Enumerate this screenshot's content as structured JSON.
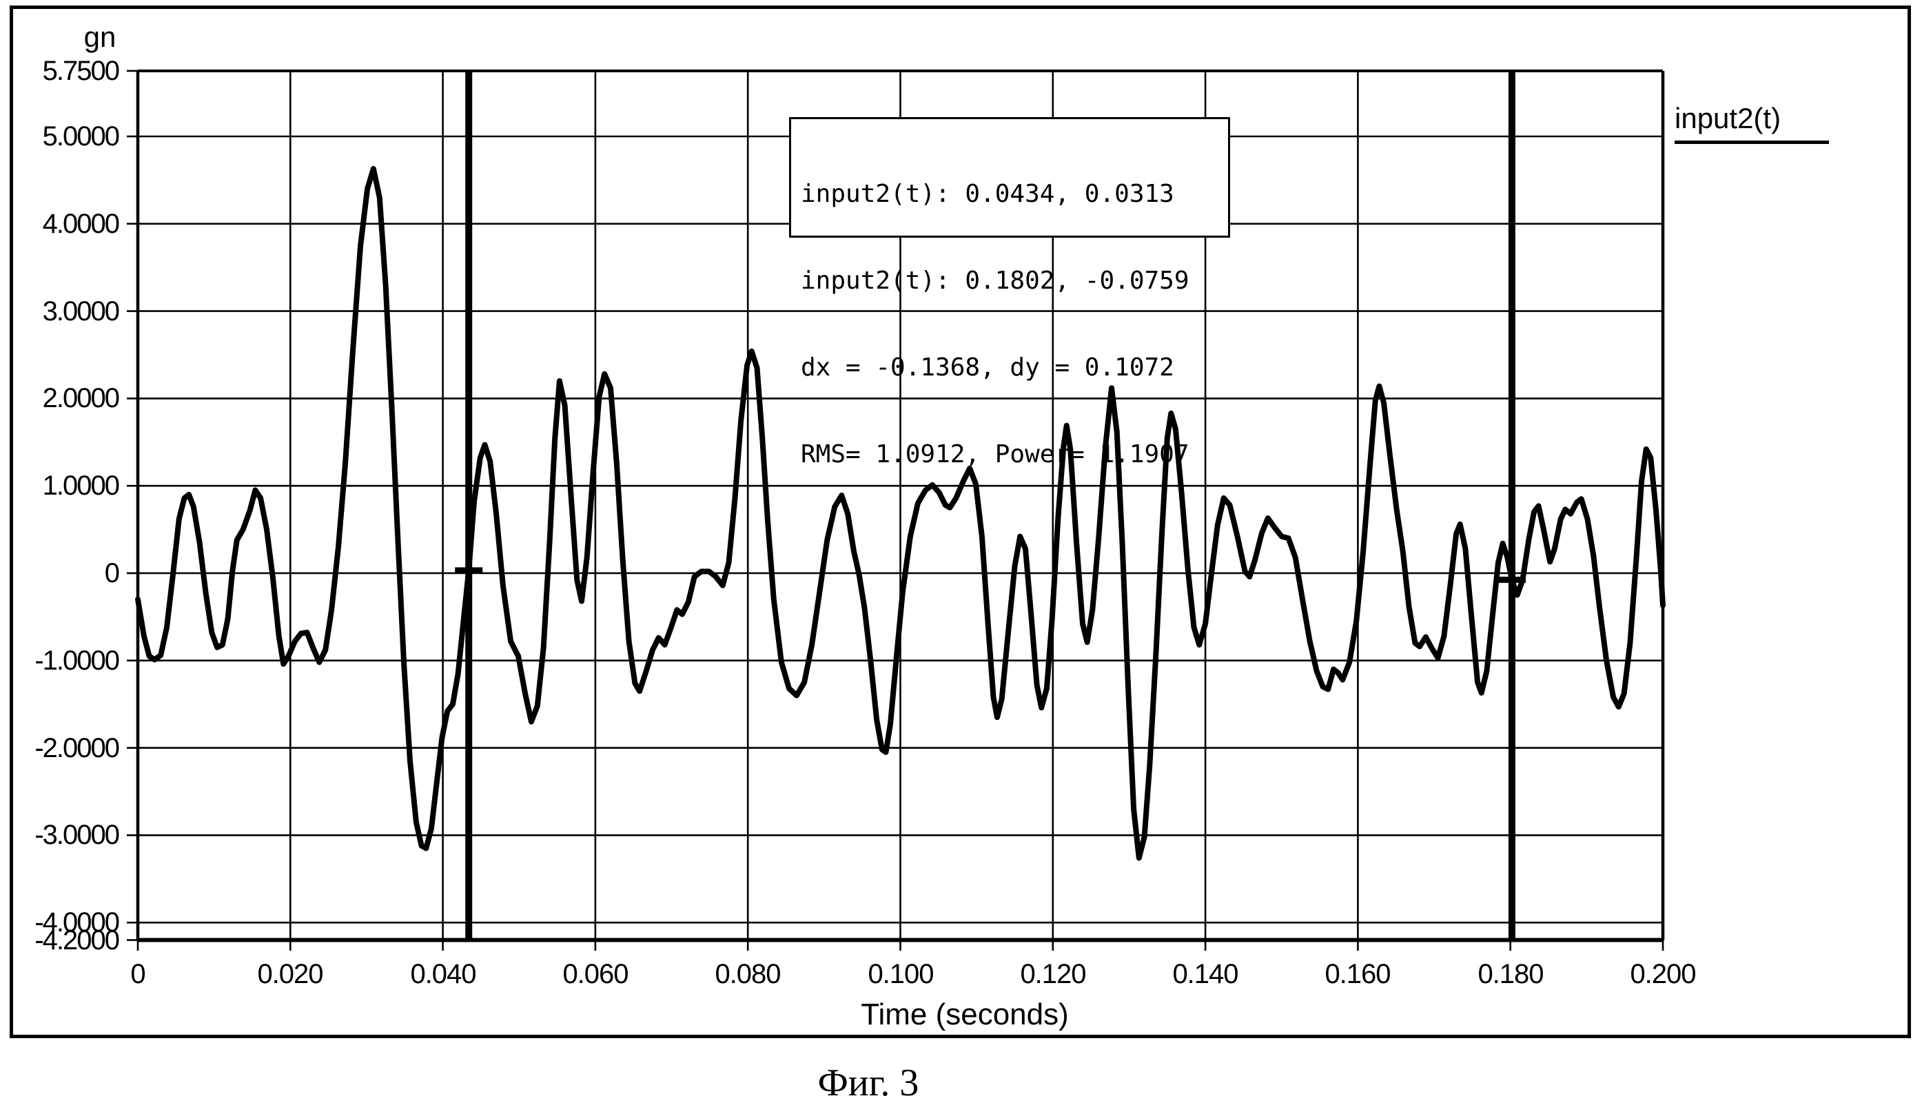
{
  "colors": {
    "ink": "#000000",
    "background": "#ffffff"
  },
  "caption": "Фиг. 3",
  "legend": {
    "label": "input2(t)"
  },
  "annotation_box": {
    "lines": [
      "input2(t): 0.0434, 0.0313",
      "input2(t): 0.1802, -0.0759",
      "dx = -0.1368, dy = 0.1072",
      "RMS= 1.0912, Power= 1.1907"
    ]
  },
  "cursors": [
    {
      "t": 0.0434,
      "value": 0.0313
    },
    {
      "t": 0.1802,
      "value": -0.0759
    }
  ],
  "chart_data": {
    "type": "line",
    "title": "",
    "ylabel": "gn",
    "xlabel": "Time (seconds)",
    "xlim": [
      0,
      0.2
    ],
    "ylim": [
      -4.2,
      5.75
    ],
    "grid": true,
    "legend_position": "top-right",
    "y_ticks": [
      {
        "v": 5.75,
        "label": "5.7500"
      },
      {
        "v": 5.0,
        "label": "5.0000"
      },
      {
        "v": 4.0,
        "label": "4.0000"
      },
      {
        "v": 3.0,
        "label": "3.0000"
      },
      {
        "v": 2.0,
        "label": "2.0000"
      },
      {
        "v": 1.0,
        "label": "1.0000"
      },
      {
        "v": 0.0,
        "label": "0"
      },
      {
        "v": -1.0,
        "label": "-1.0000"
      },
      {
        "v": -2.0,
        "label": "-2.0000"
      },
      {
        "v": -3.0,
        "label": "-3.0000"
      },
      {
        "v": -4.0,
        "label": "-4.0000"
      },
      {
        "v": -4.2,
        "label": "-4.2000"
      }
    ],
    "x_ticks": [
      {
        "v": 0.0,
        "label": "0"
      },
      {
        "v": 0.02,
        "label": "0.020"
      },
      {
        "v": 0.04,
        "label": "0.040"
      },
      {
        "v": 0.06,
        "label": "0.060"
      },
      {
        "v": 0.08,
        "label": "0.080"
      },
      {
        "v": 0.1,
        "label": "0.100"
      },
      {
        "v": 0.12,
        "label": "0.120"
      },
      {
        "v": 0.14,
        "label": "0.140"
      },
      {
        "v": 0.16,
        "label": "0.160"
      },
      {
        "v": 0.18,
        "label": "0.180"
      },
      {
        "v": 0.2,
        "label": "0.200"
      }
    ],
    "series": [
      {
        "name": "input2(t)",
        "points": [
          [
            0.0,
            -0.3
          ],
          [
            0.0008,
            -0.72
          ],
          [
            0.0015,
            -0.95
          ],
          [
            0.0022,
            -0.99
          ],
          [
            0.003,
            -0.94
          ],
          [
            0.0038,
            -0.62
          ],
          [
            0.0046,
            -0.02
          ],
          [
            0.0054,
            0.62
          ],
          [
            0.0061,
            0.86
          ],
          [
            0.0067,
            0.9
          ],
          [
            0.0073,
            0.76
          ],
          [
            0.0081,
            0.35
          ],
          [
            0.0089,
            -0.22
          ],
          [
            0.0097,
            -0.68
          ],
          [
            0.0104,
            -0.85
          ],
          [
            0.0111,
            -0.82
          ],
          [
            0.0118,
            -0.52
          ],
          [
            0.0124,
            0.02
          ],
          [
            0.013,
            0.38
          ],
          [
            0.0138,
            0.5
          ],
          [
            0.0147,
            0.72
          ],
          [
            0.0154,
            0.95
          ],
          [
            0.0161,
            0.86
          ],
          [
            0.0169,
            0.5
          ],
          [
            0.0177,
            -0.05
          ],
          [
            0.0185,
            -0.72
          ],
          [
            0.0191,
            -1.04
          ],
          [
            0.0198,
            -0.94
          ],
          [
            0.0206,
            -0.78
          ],
          [
            0.0214,
            -0.69
          ],
          [
            0.0222,
            -0.68
          ],
          [
            0.023,
            -0.86
          ],
          [
            0.0238,
            -1.02
          ],
          [
            0.0246,
            -0.88
          ],
          [
            0.0254,
            -0.42
          ],
          [
            0.0263,
            0.3
          ],
          [
            0.0272,
            1.25
          ],
          [
            0.0282,
            2.55
          ],
          [
            0.0292,
            3.75
          ],
          [
            0.0301,
            4.4
          ],
          [
            0.0309,
            4.63
          ],
          [
            0.0317,
            4.3
          ],
          [
            0.0325,
            3.3
          ],
          [
            0.0333,
            1.9
          ],
          [
            0.0341,
            0.4
          ],
          [
            0.0349,
            -1.05
          ],
          [
            0.0357,
            -2.15
          ],
          [
            0.0365,
            -2.85
          ],
          [
            0.0372,
            -3.12
          ],
          [
            0.0378,
            -3.15
          ],
          [
            0.0385,
            -2.92
          ],
          [
            0.0392,
            -2.4
          ],
          [
            0.0399,
            -1.88
          ],
          [
            0.0406,
            -1.58
          ],
          [
            0.0413,
            -1.5
          ],
          [
            0.042,
            -1.15
          ],
          [
            0.0427,
            -0.55
          ],
          [
            0.0434,
            0.03
          ],
          [
            0.0441,
            0.82
          ],
          [
            0.0449,
            1.32
          ],
          [
            0.0455,
            1.47
          ],
          [
            0.0462,
            1.28
          ],
          [
            0.047,
            0.68
          ],
          [
            0.0479,
            -0.15
          ],
          [
            0.0489,
            -0.78
          ],
          [
            0.0499,
            -0.95
          ],
          [
            0.0508,
            -1.38
          ],
          [
            0.0516,
            -1.7
          ],
          [
            0.0524,
            -1.52
          ],
          [
            0.0532,
            -0.85
          ],
          [
            0.054,
            0.35
          ],
          [
            0.0547,
            1.55
          ],
          [
            0.0553,
            2.2
          ],
          [
            0.056,
            1.92
          ],
          [
            0.0568,
            0.9
          ],
          [
            0.0576,
            -0.08
          ],
          [
            0.0582,
            -0.32
          ],
          [
            0.0589,
            0.18
          ],
          [
            0.0597,
            1.15
          ],
          [
            0.0605,
            2.02
          ],
          [
            0.0612,
            2.28
          ],
          [
            0.062,
            2.12
          ],
          [
            0.0628,
            1.25
          ],
          [
            0.0636,
            0.15
          ],
          [
            0.0644,
            -0.78
          ],
          [
            0.0652,
            -1.26
          ],
          [
            0.0658,
            -1.35
          ],
          [
            0.0666,
            -1.14
          ],
          [
            0.0675,
            -0.88
          ],
          [
            0.0683,
            -0.74
          ],
          [
            0.0691,
            -0.82
          ],
          [
            0.0699,
            -0.63
          ],
          [
            0.0707,
            -0.42
          ],
          [
            0.0714,
            -0.47
          ],
          [
            0.0722,
            -0.33
          ],
          [
            0.073,
            -0.04
          ],
          [
            0.0739,
            0.02
          ],
          [
            0.0749,
            0.02
          ],
          [
            0.0758,
            -0.04
          ],
          [
            0.0767,
            -0.14
          ],
          [
            0.0775,
            0.12
          ],
          [
            0.0783,
            0.85
          ],
          [
            0.0791,
            1.75
          ],
          [
            0.0799,
            2.38
          ],
          [
            0.0805,
            2.54
          ],
          [
            0.0812,
            2.35
          ],
          [
            0.0819,
            1.55
          ],
          [
            0.0826,
            0.6
          ],
          [
            0.0834,
            -0.3
          ],
          [
            0.0844,
            -1.02
          ],
          [
            0.0854,
            -1.32
          ],
          [
            0.0864,
            -1.4
          ],
          [
            0.0874,
            -1.25
          ],
          [
            0.0884,
            -0.82
          ],
          [
            0.0894,
            -0.22
          ],
          [
            0.0904,
            0.38
          ],
          [
            0.0914,
            0.76
          ],
          [
            0.0923,
            0.89
          ],
          [
            0.0931,
            0.68
          ],
          [
            0.0939,
            0.25
          ],
          [
            0.0946,
            -0.02
          ],
          [
            0.0953,
            -0.4
          ],
          [
            0.0961,
            -1.0
          ],
          [
            0.0969,
            -1.68
          ],
          [
            0.0976,
            -2.02
          ],
          [
            0.0981,
            -2.05
          ],
          [
            0.0987,
            -1.72
          ],
          [
            0.0995,
            -0.95
          ],
          [
            0.1003,
            -0.22
          ],
          [
            0.1013,
            0.42
          ],
          [
            0.1023,
            0.8
          ],
          [
            0.1033,
            0.95
          ],
          [
            0.1042,
            1.01
          ],
          [
            0.1051,
            0.92
          ],
          [
            0.1059,
            0.78
          ],
          [
            0.1065,
            0.75
          ],
          [
            0.1073,
            0.86
          ],
          [
            0.1083,
            1.06
          ],
          [
            0.1091,
            1.2
          ],
          [
            0.1099,
            1.02
          ],
          [
            0.1107,
            0.42
          ],
          [
            0.1115,
            -0.58
          ],
          [
            0.1122,
            -1.42
          ],
          [
            0.1127,
            -1.65
          ],
          [
            0.1133,
            -1.44
          ],
          [
            0.1141,
            -0.72
          ],
          [
            0.115,
            0.08
          ],
          [
            0.1157,
            0.42
          ],
          [
            0.1164,
            0.28
          ],
          [
            0.1171,
            -0.42
          ],
          [
            0.1179,
            -1.28
          ],
          [
            0.1185,
            -1.54
          ],
          [
            0.1192,
            -1.32
          ],
          [
            0.1199,
            -0.52
          ],
          [
            0.1207,
            0.65
          ],
          [
            0.1214,
            1.45
          ],
          [
            0.1218,
            1.69
          ],
          [
            0.1223,
            1.42
          ],
          [
            0.1231,
            0.35
          ],
          [
            0.1239,
            -0.58
          ],
          [
            0.1245,
            -0.79
          ],
          [
            0.1252,
            -0.42
          ],
          [
            0.126,
            0.4
          ],
          [
            0.1269,
            1.45
          ],
          [
            0.1277,
            2.12
          ],
          [
            0.1284,
            1.62
          ],
          [
            0.1291,
            0.35
          ],
          [
            0.1299,
            -1.35
          ],
          [
            0.1306,
            -2.7
          ],
          [
            0.1313,
            -3.26
          ],
          [
            0.132,
            -3.02
          ],
          [
            0.1327,
            -2.2
          ],
          [
            0.1335,
            -0.95
          ],
          [
            0.1343,
            0.45
          ],
          [
            0.135,
            1.55
          ],
          [
            0.1355,
            1.83
          ],
          [
            0.1361,
            1.65
          ],
          [
            0.1369,
            0.9
          ],
          [
            0.1377,
            0.05
          ],
          [
            0.1385,
            -0.62
          ],
          [
            0.1392,
            -0.82
          ],
          [
            0.14,
            -0.58
          ],
          [
            0.1408,
            0.0
          ],
          [
            0.1416,
            0.55
          ],
          [
            0.1424,
            0.86
          ],
          [
            0.1432,
            0.78
          ],
          [
            0.1442,
            0.42
          ],
          [
            0.1452,
            0.02
          ],
          [
            0.1458,
            -0.04
          ],
          [
            0.1465,
            0.15
          ],
          [
            0.1474,
            0.46
          ],
          [
            0.1482,
            0.63
          ],
          [
            0.1491,
            0.52
          ],
          [
            0.15,
            0.42
          ],
          [
            0.1509,
            0.4
          ],
          [
            0.1518,
            0.18
          ],
          [
            0.1527,
            -0.28
          ],
          [
            0.1537,
            -0.78
          ],
          [
            0.1546,
            -1.12
          ],
          [
            0.1554,
            -1.3
          ],
          [
            0.1561,
            -1.33
          ],
          [
            0.1568,
            -1.1
          ],
          [
            0.1574,
            -1.14
          ],
          [
            0.158,
            -1.22
          ],
          [
            0.1589,
            -1.02
          ],
          [
            0.1598,
            -0.55
          ],
          [
            0.1607,
            0.25
          ],
          [
            0.1616,
            1.25
          ],
          [
            0.1623,
            1.98
          ],
          [
            0.1628,
            2.14
          ],
          [
            0.1634,
            1.95
          ],
          [
            0.1642,
            1.35
          ],
          [
            0.1651,
            0.72
          ],
          [
            0.1659,
            0.25
          ],
          [
            0.1667,
            -0.38
          ],
          [
            0.1675,
            -0.8
          ],
          [
            0.1681,
            -0.84
          ],
          [
            0.1689,
            -0.73
          ],
          [
            0.1697,
            -0.86
          ],
          [
            0.1705,
            -0.97
          ],
          [
            0.1713,
            -0.72
          ],
          [
            0.1721,
            -0.15
          ],
          [
            0.1729,
            0.45
          ],
          [
            0.1734,
            0.56
          ],
          [
            0.1741,
            0.28
          ],
          [
            0.1749,
            -0.5
          ],
          [
            0.1757,
            -1.25
          ],
          [
            0.1762,
            -1.37
          ],
          [
            0.1769,
            -1.12
          ],
          [
            0.1777,
            -0.45
          ],
          [
            0.1784,
            0.12
          ],
          [
            0.179,
            0.34
          ],
          [
            0.1796,
            0.18
          ],
          [
            0.1802,
            -0.08
          ],
          [
            0.1809,
            -0.25
          ],
          [
            0.1816,
            -0.08
          ],
          [
            0.1824,
            0.38
          ],
          [
            0.1831,
            0.7
          ],
          [
            0.1837,
            0.77
          ],
          [
            0.1844,
            0.48
          ],
          [
            0.1852,
            0.13
          ],
          [
            0.1858,
            0.28
          ],
          [
            0.1866,
            0.62
          ],
          [
            0.1872,
            0.73
          ],
          [
            0.1879,
            0.68
          ],
          [
            0.1887,
            0.81
          ],
          [
            0.1893,
            0.85
          ],
          [
            0.1901,
            0.62
          ],
          [
            0.1909,
            0.2
          ],
          [
            0.1917,
            -0.4
          ],
          [
            0.1926,
            -1.0
          ],
          [
            0.1935,
            -1.42
          ],
          [
            0.1942,
            -1.53
          ],
          [
            0.1949,
            -1.38
          ],
          [
            0.1957,
            -0.8
          ],
          [
            0.1965,
            0.15
          ],
          [
            0.1972,
            1.05
          ],
          [
            0.1978,
            1.42
          ],
          [
            0.1984,
            1.32
          ],
          [
            0.1991,
            0.72
          ],
          [
            0.1997,
            0.05
          ],
          [
            0.2,
            -0.37
          ]
        ]
      }
    ]
  }
}
